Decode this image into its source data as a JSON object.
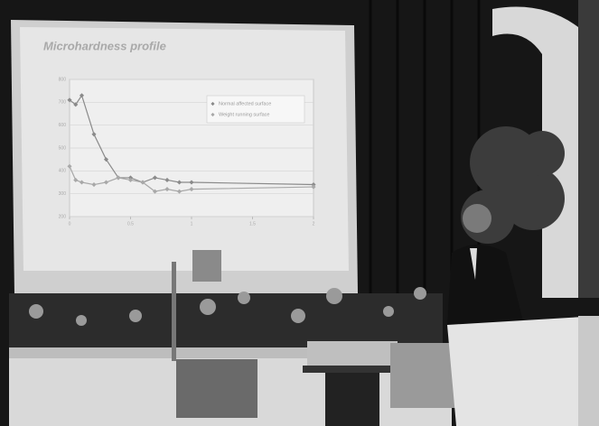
{
  "chart_data": {
    "type": "line",
    "title": "Microhardness profile",
    "series": [
      {
        "name": "Normal affected surface",
        "color": "#8a8a8a",
        "x": [
          0,
          0.05,
          0.1,
          0.2,
          0.3,
          0.4,
          0.5,
          0.6,
          0.7,
          0.8,
          0.9,
          1.0,
          2.0
        ],
        "values": [
          710,
          690,
          730,
          560,
          450,
          370,
          370,
          350,
          370,
          360,
          350,
          350,
          340
        ]
      },
      {
        "name": "Weight running surface",
        "color": "#a8a8a8",
        "x": [
          0,
          0.05,
          0.1,
          0.2,
          0.3,
          0.4,
          0.5,
          0.6,
          0.7,
          0.8,
          0.9,
          1.0,
          2.0
        ],
        "values": [
          420,
          360,
          350,
          340,
          350,
          370,
          360,
          350,
          310,
          320,
          310,
          320,
          330
        ]
      }
    ],
    "xlim": [
      0,
      2
    ],
    "xticks": [
      0,
      0.5,
      1,
      1.5,
      2
    ],
    "ylim": [
      200,
      800
    ],
    "yticks": [
      200,
      300,
      400,
      500,
      600,
      700,
      800
    ],
    "grid": true,
    "legend": "upper right"
  }
}
